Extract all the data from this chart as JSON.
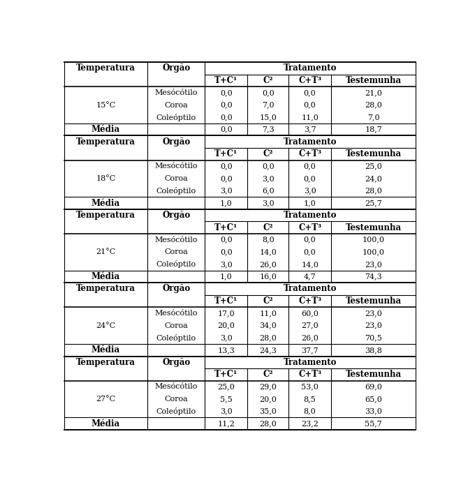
{
  "temperatures": [
    "15°C",
    "18°C",
    "21°C",
    "24°C",
    "27°C"
  ],
  "organs": [
    "Mesócótilo",
    "Coroa",
    "Coleóptilo"
  ],
  "header1": "Temperatura",
  "header2": "Orgão",
  "header3": "Tratamento",
  "subheaders": [
    "T+C¹",
    "C²",
    "C+T³",
    "Testemunha"
  ],
  "media_label": "Média",
  "data": {
    "15°C": {
      "Mesócótilo": [
        "0,0",
        "0,0",
        "0,0",
        "21,0"
      ],
      "Coroa": [
        "0,0",
        "7,0",
        "0,0",
        "28,0"
      ],
      "Coleóptilo": [
        "0,0",
        "15,0",
        "11,0",
        "7,0"
      ],
      "Média": [
        "0,0",
        "7,3",
        "3,7",
        "18,7"
      ]
    },
    "18°C": {
      "Mesócótilo": [
        "0,0",
        "0,0",
        "0,0",
        "25,0"
      ],
      "Coroa": [
        "0,0",
        "3,0",
        "0,0",
        "24,0"
      ],
      "Coleóptilo": [
        "3,0",
        "6,0",
        "3,0",
        "28,0"
      ],
      "Média": [
        "1,0",
        "3,0",
        "1,0",
        "25,7"
      ]
    },
    "21°C": {
      "Mesócótilo": [
        "0,0",
        "8,0",
        "0,0",
        "100,0"
      ],
      "Coroa": [
        "0,0",
        "14,0",
        "0,0",
        "100,0"
      ],
      "Coleóptilo": [
        "3,0",
        "26,0",
        "14,0",
        "23,0"
      ],
      "Média": [
        "1,0",
        "16,0",
        "4,7",
        "74,3"
      ]
    },
    "24°C": {
      "Mesócótilo": [
        "17,0",
        "11,0",
        "60,0",
        "23,0"
      ],
      "Coroa": [
        "20,0",
        "34,0",
        "27,0",
        "23,0"
      ],
      "Coleóptilo": [
        "3,0",
        "28,0",
        "26,0",
        "70,5"
      ],
      "Média": [
        "13,3",
        "24,3",
        "37,7",
        "38,8"
      ]
    },
    "27°C": {
      "Mesócótilo": [
        "25,0",
        "29,0",
        "53,0",
        "69,0"
      ],
      "Coroa": [
        "5,5",
        "20,0",
        "8,5",
        "65,0"
      ],
      "Coleóptilo": [
        "3,0",
        "35,0",
        "8,0",
        "33,0"
      ],
      "Média": [
        "11,2",
        "28,0",
        "23,2",
        "55,7"
      ]
    }
  },
  "bg_color": "#ffffff",
  "figwidth": 6.7,
  "figheight": 6.98,
  "dpi": 100
}
